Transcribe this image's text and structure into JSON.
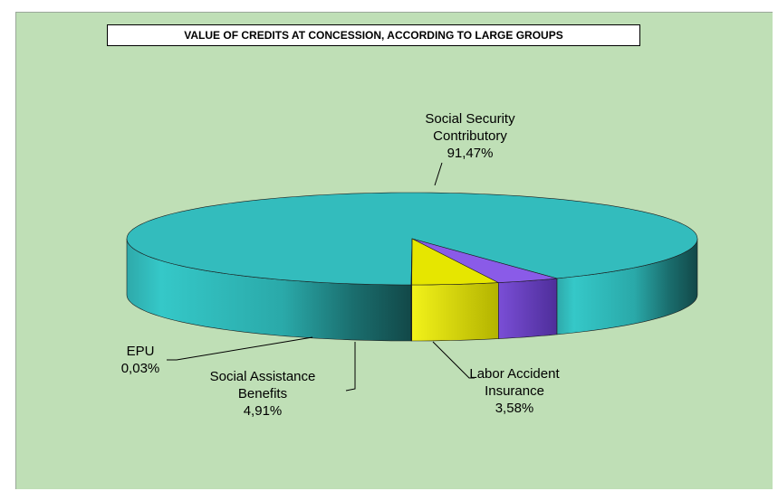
{
  "chart_data": {
    "type": "pie",
    "style": "3d",
    "title": "VALUE OF CREDITS AT CONCESSION, ACCORDING TO LARGE GROUPS",
    "slices": [
      {
        "label_lines": [
          "Social Security",
          "Contributory"
        ],
        "value_text": "91,47%",
        "value": 91.47,
        "color": "#33c0c0"
      },
      {
        "label_lines": [
          "Labor Accident",
          "Insurance"
        ],
        "value_text": "3,58%",
        "value": 3.58,
        "color": "#8a5be8"
      },
      {
        "label_lines": [
          "Social Assistance",
          "Benefits"
        ],
        "value_text": "4,91%",
        "value": 4.91,
        "color": "#e6e600"
      },
      {
        "label_lines": [
          "EPU"
        ],
        "value_text": "0,03%",
        "value": 0.03,
        "color": "#ff9933"
      }
    ],
    "legend": "none",
    "grid": false
  }
}
